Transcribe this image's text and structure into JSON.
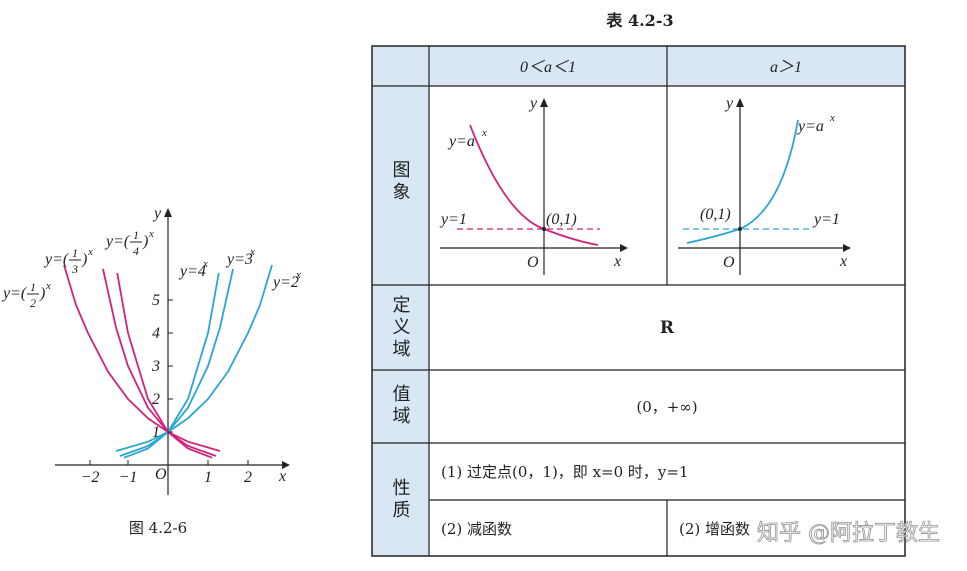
{
  "figure": {
    "caption": "图 4.2-6",
    "axis_x": "x",
    "axis_y": "y",
    "origin": "O",
    "x_ticks": [
      "−2",
      "−1",
      "1",
      "2"
    ],
    "y_ticks": [
      "1",
      "2",
      "3",
      "4",
      "5"
    ],
    "curves": [
      {
        "prefix": "y=(",
        "num": "1",
        "den": "2",
        "suffix": ")",
        "exp": "x"
      },
      {
        "prefix": "y=(",
        "num": "1",
        "den": "3",
        "suffix": ")",
        "exp": "x"
      },
      {
        "prefix": "y=(",
        "num": "1",
        "den": "4",
        "suffix": ")",
        "exp": "x"
      },
      {
        "prefix": "y=4",
        "exp": "x"
      },
      {
        "prefix": "y=3",
        "exp": "x"
      },
      {
        "prefix": "y=2",
        "exp": "x"
      }
    ]
  },
  "table": {
    "title": "表 4.2-3",
    "headers": [
      "0＜a＜1",
      "a＞1"
    ],
    "graph_row": {
      "label": "图象",
      "left": {
        "axis_y": "y",
        "axis_x": "x",
        "origin": "O",
        "curve": "y=a",
        "exp": "x",
        "line": "y=1",
        "point": "(0,1)"
      },
      "right": {
        "axis_y": "y",
        "axis_x": "x",
        "origin": "O",
        "curve": "y=a",
        "exp": "x",
        "line": "y=1",
        "point": "(0,1)"
      }
    },
    "domain_row": {
      "label": "定义域",
      "value": "R"
    },
    "range_row": {
      "label": "值域",
      "value": "(0，+∞)"
    },
    "property_row": {
      "label": "性质",
      "common": "(1) 过定点(0，1)，即 x=0 时，y=1",
      "left": "(2) 减函数",
      "right": "(2) 增函数"
    }
  },
  "watermark": "知乎 @阿拉丁教生"
}
